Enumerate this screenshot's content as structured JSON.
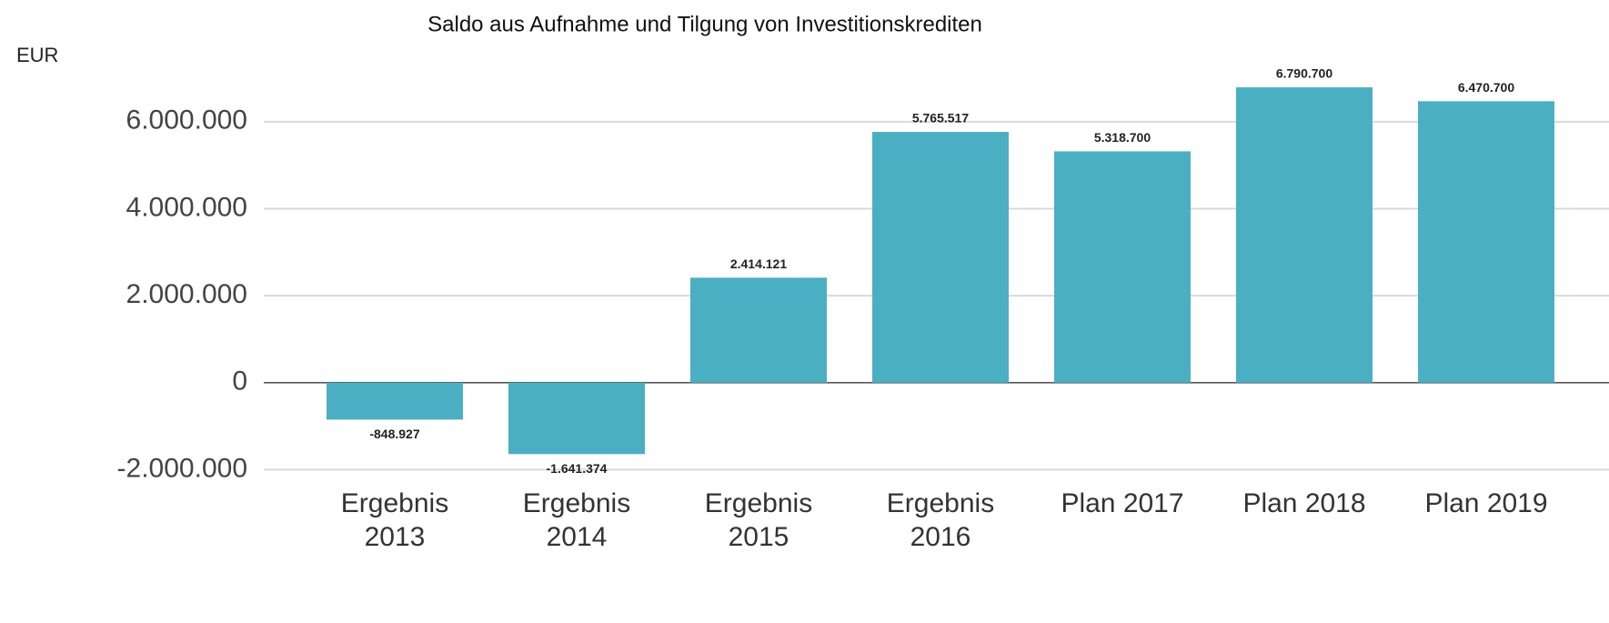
{
  "chart_data": {
    "type": "bar",
    "title": "Saldo aus Aufnahme und Tilgung von Investitionskrediten",
    "y_axis_label": "EUR",
    "categories": [
      "Ergebnis 2013",
      "Ergebnis 2014",
      "Ergebnis 2015",
      "Ergebnis 2016",
      "Plan 2017",
      "Plan 2018",
      "Plan 2019"
    ],
    "values": [
      -848927,
      -1641374,
      2414121,
      5765517,
      5318700,
      6790700,
      6470700
    ],
    "value_labels": [
      "-848.927",
      "-1.641.374",
      "2.414.121",
      "5.765.517",
      "5.318.700",
      "6.790.700",
      "6.470.700"
    ],
    "color": "#4bafc3",
    "ylim": [
      -2200000,
      7000000
    ],
    "yticks": [
      {
        "value": -2000000,
        "label": "-2.000.000"
      },
      0,
      {
        "value": 2000000,
        "label": "2.000.000"
      },
      {
        "value": 4000000,
        "label": "4.000.000"
      },
      {
        "value": 6000000,
        "label": "6.000.000"
      }
    ],
    "grid": true
  }
}
